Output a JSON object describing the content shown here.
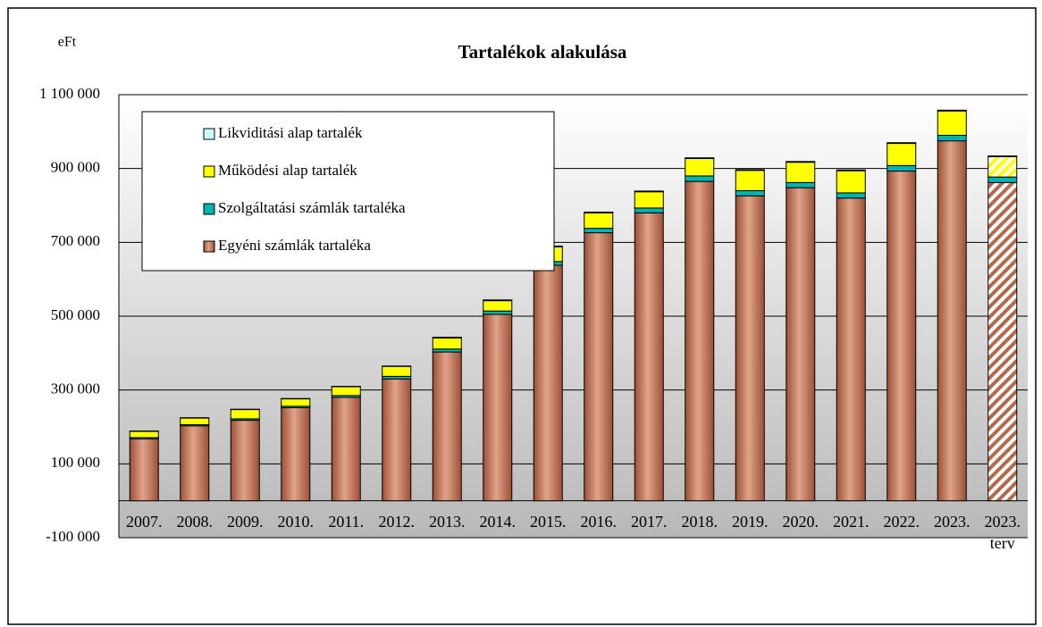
{
  "chart_data": {
    "type": "stacked_bar",
    "title": "Tartalékok alakulása",
    "y_label": "eFt",
    "categories": [
      "2007.",
      "2008.",
      "2009.",
      "2010.",
      "2011.",
      "2012.",
      "2013.",
      "2014.",
      "2015.",
      "2016.",
      "2017.",
      "2018.",
      "2019.",
      "2020.",
      "2021.",
      "2022.",
      "2023.",
      "2023. terv"
    ],
    "series": [
      {
        "name": "Egyéni számlák tartaléka",
        "color": "#b5694a",
        "values": [
          168000,
          203000,
          218000,
          252000,
          280000,
          330000,
          403000,
          505000,
          638000,
          726000,
          780000,
          865000,
          826000,
          848000,
          820000,
          893000,
          975000,
          862000
        ]
      },
      {
        "name": "Szolgáltatási számlák tartaléka",
        "color": "#00b3b3",
        "values": [
          3000,
          3000,
          4000,
          4000,
          5000,
          7000,
          8000,
          9000,
          10000,
          12000,
          13000,
          15000,
          14000,
          14000,
          14000,
          15000,
          15000,
          15000
        ]
      },
      {
        "name": "Működési alap tartalék",
        "color": "#ffff00",
        "values": [
          17000,
          18000,
          25000,
          20000,
          24000,
          27000,
          30000,
          28000,
          40000,
          42000,
          44000,
          47000,
          55000,
          55000,
          60000,
          60000,
          66000,
          55000
        ]
      },
      {
        "name": "Likviditási alap tartalék",
        "color": "#ccffff",
        "values": [
          1000,
          1000,
          1000,
          1000,
          1000,
          1000,
          2000,
          2000,
          2000,
          2000,
          2000,
          2000,
          2000,
          2000,
          2000,
          2000,
          2000,
          2000
        ]
      }
    ],
    "hatched": [
      17
    ],
    "ylim": [
      -100000,
      1100000
    ],
    "yticks": [
      {
        "value": -100000,
        "label": "-100 000"
      },
      {
        "value": 100000,
        "label": "100 000"
      },
      {
        "value": 300000,
        "label": "300 000"
      },
      {
        "value": 500000,
        "label": "500 000"
      },
      {
        "value": 700000,
        "label": "700 000"
      },
      {
        "value": 900000,
        "label": "900 000"
      },
      {
        "value": 1100000,
        "label": "1 100 000"
      }
    ],
    "grid": true,
    "legend": "upper left"
  }
}
